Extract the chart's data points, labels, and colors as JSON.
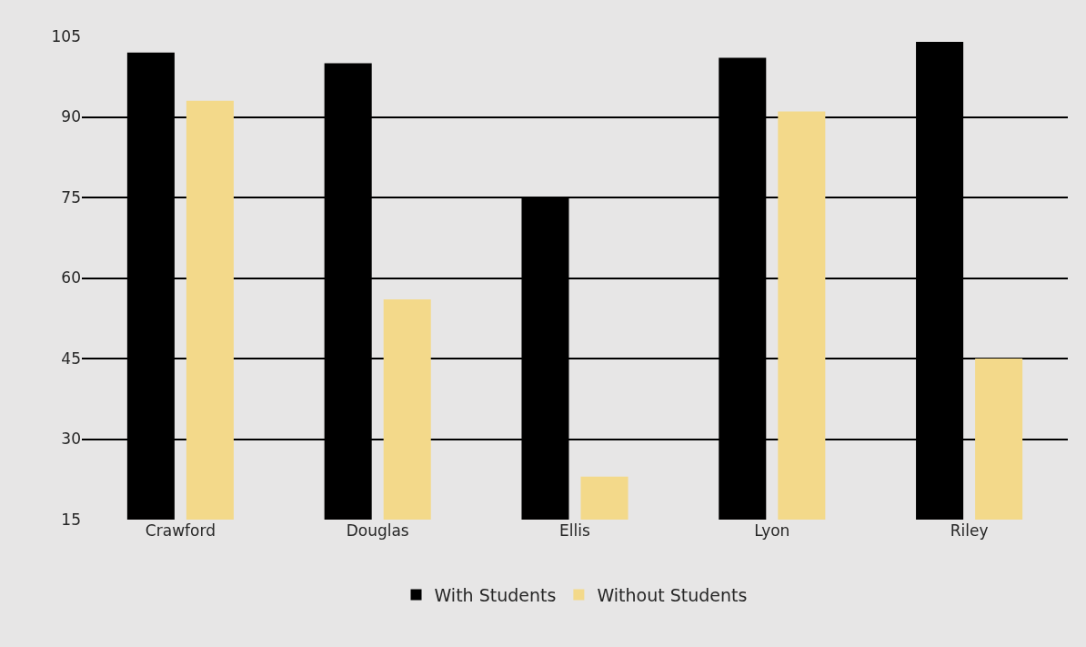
{
  "chart_data": {
    "type": "bar",
    "categories": [
      "Crawford",
      "Douglas",
      "Ellis",
      "Lyon",
      "Riley"
    ],
    "series": [
      {
        "name": "With Students",
        "color": "#000000",
        "values": [
          102,
          100,
          75,
          101,
          104
        ]
      },
      {
        "name": "Without Students",
        "color": "#f3d98a",
        "values": [
          93,
          56,
          23,
          91,
          45
        ]
      }
    ],
    "ylim": [
      15,
      105
    ],
    "yticks": [
      15,
      30,
      45,
      60,
      75,
      90,
      105
    ],
    "grid": "y",
    "legend": "bottom"
  }
}
